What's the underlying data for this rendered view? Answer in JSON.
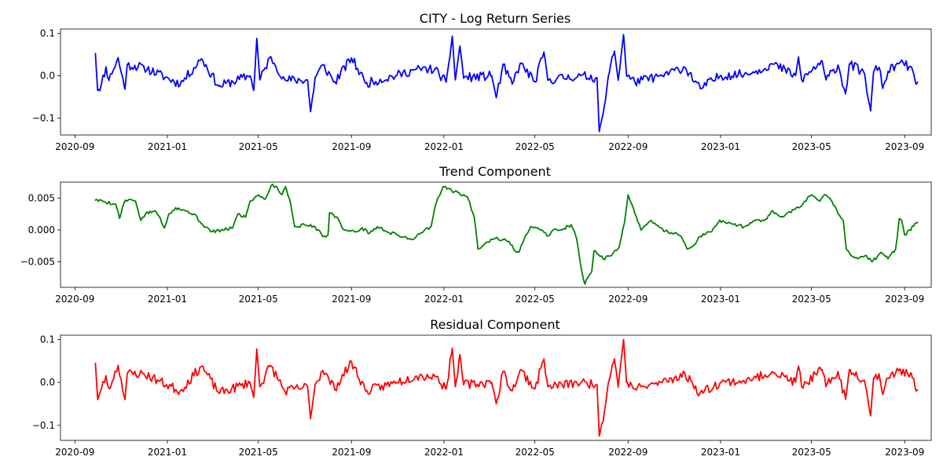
{
  "chart_data": [
    {
      "type": "line",
      "title": "CITY - Log Return Series",
      "color": "#0000ff",
      "x_ticks": [
        "2020-09",
        "2021-01",
        "2021-05",
        "2021-09",
        "2022-01",
        "2022-05",
        "2022-09",
        "2023-01",
        "2023-05",
        "2023-09"
      ],
      "y_ticks": [
        "0.1",
        "0.0",
        "−0.1"
      ],
      "xlim": [
        "2020-08-13",
        "2023-10-06"
      ],
      "ylim": [
        -0.14,
        0.11
      ],
      "x_range": [
        "2020-09-28",
        "2023-09-18"
      ],
      "control_points": [
        [
          "2020-09-28",
          0.052
        ],
        [
          "2020-10-01",
          -0.035
        ],
        [
          "2020-10-06",
          -0.02
        ],
        [
          "2020-10-12",
          0.02
        ],
        [
          "2020-10-16",
          -0.01
        ],
        [
          "2020-10-21",
          0.01
        ],
        [
          "2020-10-28",
          0.042
        ],
        [
          "2020-11-06",
          -0.032
        ],
        [
          "2020-11-09",
          0.025
        ],
        [
          "2020-12-01",
          0.02
        ],
        [
          "2021-01-18",
          -0.02
        ],
        [
          "2021-02-15",
          0.04
        ],
        [
          "2021-03-10",
          -0.025
        ],
        [
          "2021-04-20",
          0.0
        ],
        [
          "2021-04-25",
          -0.035
        ],
        [
          "2021-04-29",
          0.088
        ],
        [
          "2021-05-03",
          -0.01
        ],
        [
          "2021-05-17",
          0.045
        ],
        [
          "2021-06-05",
          -0.01
        ],
        [
          "2021-07-05",
          -0.01
        ],
        [
          "2021-07-09",
          -0.085
        ],
        [
          "2021-07-15",
          -0.005
        ],
        [
          "2021-07-25",
          0.025
        ],
        [
          "2021-08-10",
          -0.015
        ],
        [
          "2021-09-01",
          0.042
        ],
        [
          "2021-09-20",
          -0.018
        ],
        [
          "2021-10-30",
          0.0
        ],
        [
          "2021-11-25",
          0.015
        ],
        [
          "2021-12-20",
          0.015
        ],
        [
          "2022-01-04",
          -0.015
        ],
        [
          "2022-01-12",
          0.093
        ],
        [
          "2022-01-16",
          -0.01
        ],
        [
          "2022-01-22",
          0.07
        ],
        [
          "2022-01-27",
          -0.005
        ],
        [
          "2022-03-05",
          0.0
        ],
        [
          "2022-03-11",
          -0.052
        ],
        [
          "2022-03-20",
          0.025
        ],
        [
          "2022-04-01",
          -0.02
        ],
        [
          "2022-04-12",
          0.03
        ],
        [
          "2022-05-01",
          -0.015
        ],
        [
          "2022-05-13",
          0.055
        ],
        [
          "2022-05-18",
          -0.01
        ],
        [
          "2022-07-01",
          0.0
        ],
        [
          "2022-07-22",
          -0.005
        ],
        [
          "2022-07-25",
          -0.132
        ],
        [
          "2022-08-02",
          -0.06
        ],
        [
          "2022-08-06",
          0.0
        ],
        [
          "2022-08-14",
          0.058
        ],
        [
          "2022-08-19",
          -0.01
        ],
        [
          "2022-08-26",
          0.097
        ],
        [
          "2022-08-30",
          0.0
        ],
        [
          "2022-09-10",
          -0.015
        ],
        [
          "2022-10-15",
          0.0
        ],
        [
          "2022-11-15",
          0.02
        ],
        [
          "2022-12-05",
          -0.03
        ],
        [
          "2023-01-01",
          0.0
        ],
        [
          "2023-02-10",
          0.005
        ],
        [
          "2023-03-10",
          0.028
        ],
        [
          "2023-04-10",
          0.0
        ],
        [
          "2023-04-14",
          0.043
        ],
        [
          "2023-04-18",
          -0.01
        ],
        [
          "2023-05-15",
          0.035
        ],
        [
          "2023-05-20",
          -0.01
        ],
        [
          "2023-06-05",
          0.025
        ],
        [
          "2023-06-15",
          -0.042
        ],
        [
          "2023-06-20",
          0.028
        ],
        [
          "2023-07-10",
          0.005
        ],
        [
          "2023-07-18",
          -0.083
        ],
        [
          "2023-07-22",
          0.01
        ],
        [
          "2023-07-29",
          0.02
        ],
        [
          "2023-08-03",
          -0.03
        ],
        [
          "2023-08-10",
          0.01
        ],
        [
          "2023-08-25",
          0.03
        ],
        [
          "2023-09-10",
          0.02
        ],
        [
          "2023-09-16",
          -0.02
        ],
        [
          "2023-09-18",
          -0.015
        ]
      ],
      "noise_amplitude": 0.011,
      "seed": 11
    },
    {
      "type": "line",
      "title": "Trend Component",
      "color": "#008000",
      "x_ticks": [
        "2020-09",
        "2021-01",
        "2021-05",
        "2021-09",
        "2022-01",
        "2022-05",
        "2022-09",
        "2023-01",
        "2023-05",
        "2023-09"
      ],
      "y_ticks": [
        "0.005",
        "0.000",
        "−0.005"
      ],
      "xlim": [
        "2020-08-13",
        "2023-10-06"
      ],
      "ylim": [
        -0.009,
        0.0075
      ],
      "x_range": [
        "2020-09-28",
        "2023-09-18"
      ],
      "control_points": [
        [
          "2020-09-28",
          0.0047
        ],
        [
          "2020-10-08",
          0.0045
        ],
        [
          "2020-10-25",
          0.004
        ],
        [
          "2020-10-30",
          0.0018
        ],
        [
          "2020-11-05",
          0.0043
        ],
        [
          "2020-11-12",
          0.0048
        ],
        [
          "2020-11-20",
          0.0045
        ],
        [
          "2020-11-27",
          0.0015
        ],
        [
          "2020-12-03",
          0.0025
        ],
        [
          "2020-12-15",
          0.003
        ],
        [
          "2020-12-22",
          0.002
        ],
        [
          "2020-12-28",
          0.0003
        ],
        [
          "2021-01-03",
          0.0025
        ],
        [
          "2021-01-12",
          0.0035
        ],
        [
          "2021-01-25",
          0.003
        ],
        [
          "2021-02-05",
          0.0025
        ],
        [
          "2021-02-15",
          0.001
        ],
        [
          "2021-02-28",
          -0.0003
        ],
        [
          "2021-03-15",
          0.0
        ],
        [
          "2021-03-28",
          0.0003
        ],
        [
          "2021-04-04",
          0.0025
        ],
        [
          "2021-04-14",
          0.002
        ],
        [
          "2021-04-20",
          0.0045
        ],
        [
          "2021-05-01",
          0.0055
        ],
        [
          "2021-05-10",
          0.0048
        ],
        [
          "2021-05-18",
          0.007
        ],
        [
          "2021-05-25",
          0.0068
        ],
        [
          "2021-06-01",
          0.0055
        ],
        [
          "2021-06-06",
          0.0068
        ],
        [
          "2021-06-12",
          0.0045
        ],
        [
          "2021-06-18",
          0.0005
        ],
        [
          "2021-07-01",
          0.0008
        ],
        [
          "2021-07-15",
          0.0005
        ],
        [
          "2021-07-25",
          -0.001
        ],
        [
          "2021-08-01",
          -0.0008
        ],
        [
          "2021-08-03",
          0.0027
        ],
        [
          "2021-08-13",
          0.002
        ],
        [
          "2021-08-22",
          0.0
        ],
        [
          "2021-09-05",
          -0.0003
        ],
        [
          "2021-09-15",
          0.0003
        ],
        [
          "2021-09-25",
          -0.0005
        ],
        [
          "2021-10-05",
          0.0005
        ],
        [
          "2021-10-18",
          -0.0003
        ],
        [
          "2021-11-01",
          -0.0008
        ],
        [
          "2021-11-20",
          -0.0015
        ],
        [
          "2021-12-01",
          -0.0005
        ],
        [
          "2021-12-15",
          0.0005
        ],
        [
          "2021-12-21",
          0.004
        ],
        [
          "2021-12-31",
          0.0068
        ],
        [
          "2022-01-15",
          0.006
        ],
        [
          "2022-02-01",
          0.0052
        ],
        [
          "2022-02-10",
          0.002
        ],
        [
          "2022-02-15",
          -0.003
        ],
        [
          "2022-02-25",
          -0.002
        ],
        [
          "2022-03-10",
          -0.0013
        ],
        [
          "2022-03-28",
          -0.0018
        ],
        [
          "2022-04-05",
          -0.0033
        ],
        [
          "2022-04-10",
          -0.0035
        ],
        [
          "2022-04-15",
          -0.002
        ],
        [
          "2022-04-25",
          0.0005
        ],
        [
          "2022-05-10",
          0.0
        ],
        [
          "2022-05-18",
          -0.001
        ],
        [
          "2022-05-25",
          0.0
        ],
        [
          "2022-06-05",
          0.0
        ],
        [
          "2022-06-18",
          0.0008
        ],
        [
          "2022-06-25",
          -0.0013
        ],
        [
          "2022-07-01",
          -0.006
        ],
        [
          "2022-07-06",
          -0.0085
        ],
        [
          "2022-07-15",
          -0.0065
        ],
        [
          "2022-07-18",
          -0.0033
        ],
        [
          "2022-07-30",
          -0.0045
        ],
        [
          "2022-08-10",
          -0.004
        ],
        [
          "2022-08-20",
          -0.0028
        ],
        [
          "2022-08-27",
          0.001
        ],
        [
          "2022-09-01",
          0.0055
        ],
        [
          "2022-09-06",
          0.004
        ],
        [
          "2022-09-12",
          0.002
        ],
        [
          "2022-09-18",
          0.0
        ],
        [
          "2022-10-01",
          0.0015
        ],
        [
          "2022-10-08",
          0.0008
        ],
        [
          "2022-10-20",
          -0.0002
        ],
        [
          "2022-11-01",
          -0.0005
        ],
        [
          "2022-11-10",
          -0.001
        ],
        [
          "2022-11-18",
          -0.003
        ],
        [
          "2022-11-26",
          -0.0025
        ],
        [
          "2022-12-05",
          -0.001
        ],
        [
          "2022-12-20",
          -0.0003
        ],
        [
          "2022-12-31",
          0.0015
        ],
        [
          "2023-01-15",
          0.001
        ],
        [
          "2023-02-01",
          0.0005
        ],
        [
          "2023-02-15",
          0.0015
        ],
        [
          "2023-02-28",
          0.0015
        ],
        [
          "2023-03-10",
          0.003
        ],
        [
          "2023-03-22",
          0.002
        ],
        [
          "2023-04-01",
          0.0028
        ],
        [
          "2023-04-15",
          0.0035
        ],
        [
          "2023-05-01",
          0.0055
        ],
        [
          "2023-05-12",
          0.0045
        ],
        [
          "2023-05-18",
          0.0055
        ],
        [
          "2023-05-28",
          0.0045
        ],
        [
          "2023-06-05",
          0.0025
        ],
        [
          "2023-06-12",
          0.0015
        ],
        [
          "2023-06-16",
          -0.003
        ],
        [
          "2023-06-22",
          -0.004
        ],
        [
          "2023-07-01",
          -0.0045
        ],
        [
          "2023-07-12",
          -0.004
        ],
        [
          "2023-07-20",
          -0.005
        ],
        [
          "2023-08-01",
          -0.0035
        ],
        [
          "2023-08-10",
          -0.0045
        ],
        [
          "2023-08-20",
          -0.003
        ],
        [
          "2023-08-25",
          0.0018
        ],
        [
          "2023-08-28",
          0.0015
        ],
        [
          "2023-09-01",
          -0.0008
        ],
        [
          "2023-09-18",
          0.0012
        ]
      ],
      "noise_amplitude": 0.00025,
      "seed": 5
    },
    {
      "type": "line",
      "title": "Residual Component",
      "color": "#ff0000",
      "x_ticks": [
        "2020-09",
        "2021-01",
        "2021-05",
        "2021-09",
        "2022-01",
        "2022-05",
        "2022-09",
        "2023-01",
        "2023-05",
        "2023-09"
      ],
      "y_ticks": [
        "0.1",
        "0.0",
        "−0.1"
      ],
      "xlim": [
        "2020-08-13",
        "2023-10-06"
      ],
      "ylim": [
        -0.135,
        0.11
      ],
      "x_range": [
        "2020-09-28",
        "2023-09-18"
      ],
      "control_points": [
        [
          "2020-09-28",
          0.045
        ],
        [
          "2020-10-01",
          -0.04
        ],
        [
          "2020-10-06",
          -0.015
        ],
        [
          "2020-10-12",
          0.015
        ],
        [
          "2020-10-16",
          -0.015
        ],
        [
          "2020-10-21",
          0.005
        ],
        [
          "2020-10-28",
          0.04
        ],
        [
          "2020-11-06",
          -0.04
        ],
        [
          "2020-11-09",
          0.02
        ],
        [
          "2020-12-01",
          0.02
        ],
        [
          "2021-01-18",
          -0.02
        ],
        [
          "2021-02-15",
          0.038
        ],
        [
          "2021-03-10",
          -0.025
        ],
        [
          "2021-04-20",
          0.0
        ],
        [
          "2021-04-25",
          -0.035
        ],
        [
          "2021-04-29",
          0.078
        ],
        [
          "2021-05-03",
          -0.01
        ],
        [
          "2021-05-17",
          0.04
        ],
        [
          "2021-06-05",
          -0.02
        ],
        [
          "2021-07-05",
          -0.01
        ],
        [
          "2021-07-09",
          -0.083
        ],
        [
          "2021-07-15",
          -0.005
        ],
        [
          "2021-07-25",
          0.028
        ],
        [
          "2021-08-10",
          -0.015
        ],
        [
          "2021-09-01",
          0.048
        ],
        [
          "2021-09-20",
          -0.02
        ],
        [
          "2021-10-30",
          0.0
        ],
        [
          "2021-11-25",
          0.015
        ],
        [
          "2021-12-20",
          0.015
        ],
        [
          "2022-01-04",
          -0.015
        ],
        [
          "2022-01-12",
          0.08
        ],
        [
          "2022-01-16",
          -0.01
        ],
        [
          "2022-01-22",
          0.065
        ],
        [
          "2022-01-27",
          -0.005
        ],
        [
          "2022-03-05",
          0.0
        ],
        [
          "2022-03-11",
          -0.05
        ],
        [
          "2022-03-20",
          0.025
        ],
        [
          "2022-04-01",
          -0.02
        ],
        [
          "2022-04-12",
          0.03
        ],
        [
          "2022-05-01",
          -0.015
        ],
        [
          "2022-05-13",
          0.055
        ],
        [
          "2022-05-18",
          -0.01
        ],
        [
          "2022-07-01",
          0.0
        ],
        [
          "2022-07-22",
          -0.005
        ],
        [
          "2022-07-25",
          -0.125
        ],
        [
          "2022-08-02",
          -0.055
        ],
        [
          "2022-08-06",
          0.0
        ],
        [
          "2022-08-14",
          0.055
        ],
        [
          "2022-08-19",
          -0.01
        ],
        [
          "2022-08-26",
          0.1
        ],
        [
          "2022-08-30",
          0.0
        ],
        [
          "2022-09-10",
          -0.015
        ],
        [
          "2022-10-15",
          0.0
        ],
        [
          "2022-11-15",
          0.02
        ],
        [
          "2022-12-05",
          -0.025
        ],
        [
          "2023-01-01",
          0.0
        ],
        [
          "2023-02-10",
          0.005
        ],
        [
          "2023-03-10",
          0.025
        ],
        [
          "2023-04-10",
          0.0
        ],
        [
          "2023-04-14",
          0.038
        ],
        [
          "2023-04-18",
          -0.01
        ],
        [
          "2023-05-15",
          0.03
        ],
        [
          "2023-05-20",
          -0.01
        ],
        [
          "2023-06-05",
          0.025
        ],
        [
          "2023-06-15",
          -0.04
        ],
        [
          "2023-06-20",
          0.03
        ],
        [
          "2023-07-10",
          0.005
        ],
        [
          "2023-07-18",
          -0.078
        ],
        [
          "2023-07-22",
          0.01
        ],
        [
          "2023-07-29",
          0.02
        ],
        [
          "2023-08-03",
          -0.028
        ],
        [
          "2023-08-10",
          0.01
        ],
        [
          "2023-08-25",
          0.03
        ],
        [
          "2023-09-10",
          0.02
        ],
        [
          "2023-09-16",
          -0.02
        ],
        [
          "2023-09-18",
          -0.018
        ]
      ],
      "noise_amplitude": 0.011,
      "seed": 23
    }
  ]
}
